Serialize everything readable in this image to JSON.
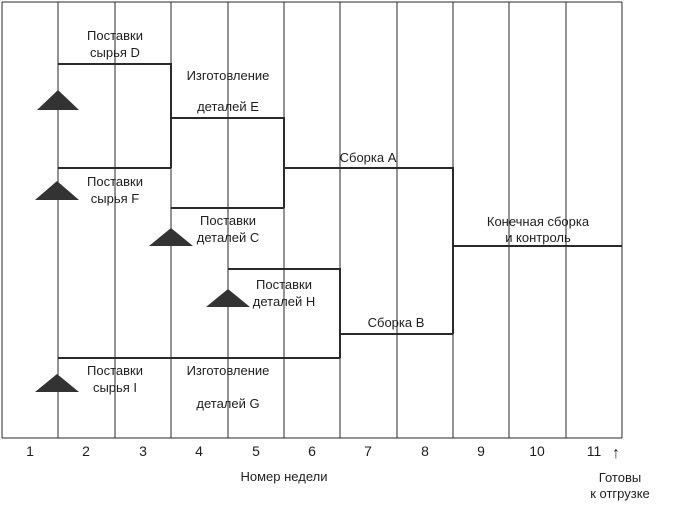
{
  "axis": {
    "weeks": [
      "1",
      "2",
      "3",
      "4",
      "5",
      "6",
      "7",
      "8",
      "9",
      "10",
      "11"
    ],
    "xlabel": "Номер недели",
    "ready": [
      "Готовы",
      "к отгрузке"
    ],
    "ready_arrow": "↑"
  },
  "activities": [
    {
      "id": "supply-d",
      "label": [
        "Поставки",
        "сырья D"
      ]
    },
    {
      "id": "make-e",
      "label": [
        "Изготовление",
        "деталей E"
      ]
    },
    {
      "id": "supply-f",
      "label": [
        "Поставки",
        "сырья F"
      ]
    },
    {
      "id": "supply-c",
      "label": [
        "Поставки",
        "деталей C"
      ]
    },
    {
      "id": "assembly-a",
      "label": [
        "Сборка A"
      ]
    },
    {
      "id": "final",
      "label": [
        "Конечная сборка",
        "и контроль"
      ]
    },
    {
      "id": "supply-h",
      "label": [
        "Поставки",
        "деталей H"
      ]
    },
    {
      "id": "assembly-b",
      "label": [
        "Сборка B"
      ]
    },
    {
      "id": "supply-i",
      "label": [
        "Поставки",
        "сырья I"
      ]
    },
    {
      "id": "make-g",
      "label": [
        "Изготовление",
        "деталей G"
      ]
    }
  ],
  "colors": {
    "line": "#2a2a2a",
    "marker": "#333333",
    "background": "#ffffff"
  }
}
